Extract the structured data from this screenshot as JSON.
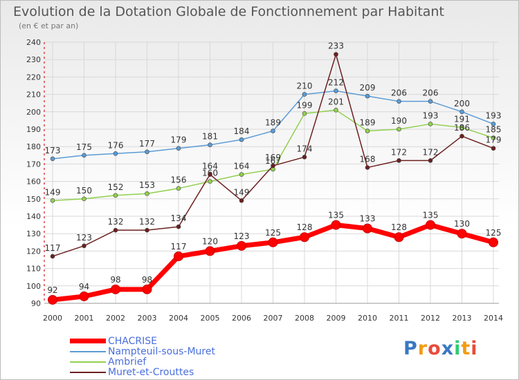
{
  "title": "Evolution de la Dotation Globale de Fonctionnement par Habitant",
  "subtitle": "(en € et par an)",
  "logo_text": "Proxiti",
  "chart_data": {
    "type": "line",
    "categories": [
      "2000",
      "2001",
      "2002",
      "2003",
      "2004",
      "2005",
      "2006",
      "2007",
      "2008",
      "2009",
      "2010",
      "2011",
      "2012",
      "2013",
      "2014"
    ],
    "ylim": [
      90,
      240
    ],
    "yticks": [
      90,
      100,
      110,
      120,
      130,
      140,
      150,
      160,
      170,
      180,
      190,
      200,
      210,
      220,
      230,
      240
    ],
    "grid": true,
    "legend_position": "bottom-left",
    "series": [
      {
        "name": "Nampteuil-sous-Muret",
        "color": "#5b9bd5",
        "values": [
          173,
          175,
          176,
          177,
          179,
          181,
          184,
          189,
          210,
          212,
          209,
          206,
          206,
          200,
          193
        ]
      },
      {
        "name": "Ambrief",
        "color": "#92d050",
        "values": [
          149,
          150,
          152,
          153,
          156,
          160,
          164,
          167,
          199,
          201,
          189,
          190,
          193,
          191,
          185
        ]
      },
      {
        "name": "Muret-et-Crouttes",
        "color": "#6b1f1f",
        "values": [
          117,
          123,
          132,
          132,
          134,
          164,
          149,
          169,
          174,
          233,
          168,
          172,
          172,
          186,
          179
        ]
      },
      {
        "name": "CHACRISE",
        "color": "#ff0000",
        "values": [
          92,
          94,
          98,
          98,
          117,
          120,
          123,
          125,
          128,
          135,
          133,
          128,
          135,
          130,
          125
        ]
      }
    ]
  }
}
